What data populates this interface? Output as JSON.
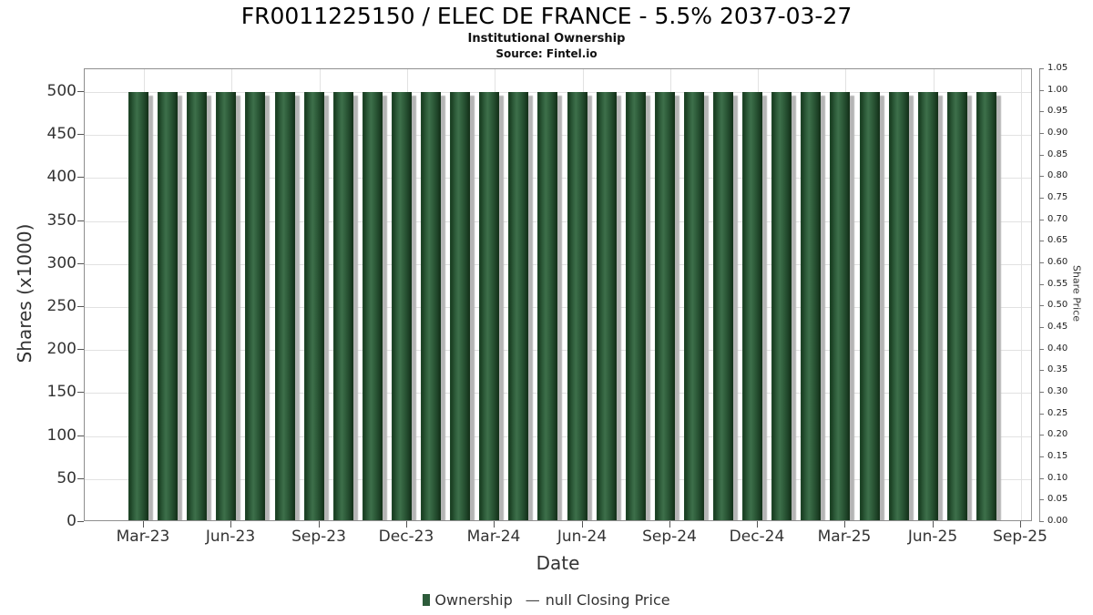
{
  "legend": {
    "dash": "—"
  },
  "colors": {
    "bar_green": "#2d5c3a",
    "bar_shadow": "#b5b5b5",
    "grid": "#e2e2e2",
    "spine": "#8f8f8f",
    "tick_text": "#333333",
    "title_text": "#000000"
  },
  "chart_data": {
    "type": "bar",
    "title": "FR0011225150 / ELEC DE FRANCE - 5.5% 2037-03-27",
    "subtitle": "Institutional Ownership",
    "source": "Source: Fintel.io",
    "xlabel": "Date",
    "ylabel_left": "Shares (x1000)",
    "ylabel_right": "Share Price",
    "grid": true,
    "legend_position": "bottom",
    "categories": [
      "Feb-23",
      "Mar-23",
      "Apr-23",
      "May-23",
      "Jun-23",
      "Jul-23",
      "Aug-23",
      "Sep-23",
      "Oct-23",
      "Nov-23",
      "Dec-23",
      "Jan-24",
      "Feb-24",
      "Mar-24",
      "Apr-24",
      "May-24",
      "Jun-24",
      "Jul-24",
      "Aug-24",
      "Sep-24",
      "Oct-24",
      "Nov-24",
      "Dec-24",
      "Jan-25",
      "Feb-25",
      "Mar-25",
      "Apr-25",
      "May-25",
      "Jun-25",
      "Jul-25"
    ],
    "series": [
      {
        "name": "Ownership",
        "type": "bar",
        "color": "#2d5c3a",
        "values": [
          500,
          500,
          500,
          500,
          500,
          500,
          500,
          500,
          500,
          500,
          500,
          500,
          500,
          500,
          500,
          500,
          500,
          500,
          500,
          500,
          500,
          500,
          500,
          500,
          500,
          500,
          500,
          500,
          500,
          500
        ]
      },
      {
        "name": "null Closing Price",
        "type": "line",
        "color": "#444444",
        "values": null
      }
    ],
    "x_tick_labels": [
      "Mar-23",
      "Jun-23",
      "Sep-23",
      "Dec-23",
      "Mar-24",
      "Jun-24",
      "Sep-24",
      "Dec-24",
      "Mar-25",
      "Jun-25",
      "Sep-25"
    ],
    "left_ticks": [
      0,
      50,
      100,
      150,
      200,
      250,
      300,
      350,
      400,
      450,
      500
    ],
    "right_ticks": [
      0.0,
      0.05,
      0.1,
      0.15,
      0.2,
      0.25,
      0.3,
      0.35,
      0.4,
      0.45,
      0.5,
      0.55,
      0.6,
      0.65,
      0.7,
      0.75,
      0.8,
      0.85,
      0.9,
      0.95,
      1.0,
      1.05
    ],
    "ylim_left": [
      0,
      526
    ],
    "ylim_right": [
      0,
      1.05
    ]
  }
}
